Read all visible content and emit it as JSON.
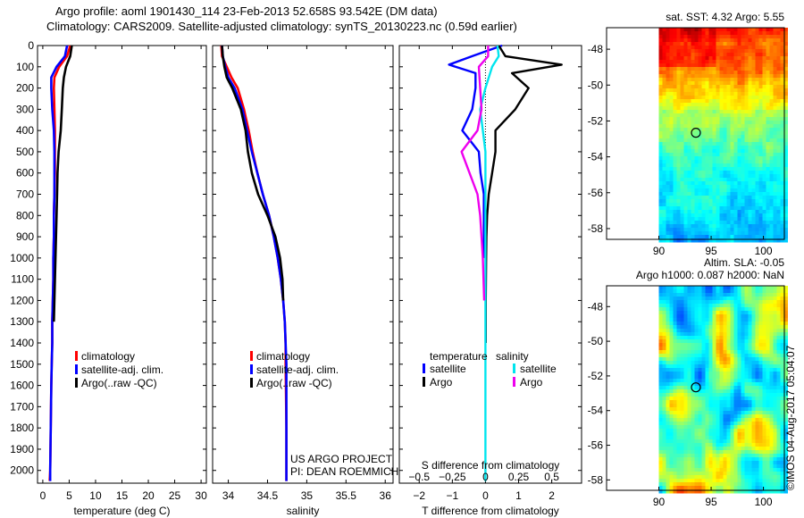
{
  "header": {
    "line1": "Argo profile: aoml 1901430_114 23-Feb-2013 52.658S 93.542E (DM data)",
    "line2": "Climatology: CARS2009. Satellite-adjusted climatology: synTS_20130223.nc (0.59d earlier)"
  },
  "colors": {
    "climatology": "#ff0000",
    "satellite": "#0000ff",
    "argo": "#000000",
    "sat_salinity": "#00e5ee",
    "argo_salinity": "#ee00ee"
  },
  "chart_data": [
    {
      "id": "temperature",
      "type": "line",
      "xlabel": "temperature (deg C)",
      "ylabel": "",
      "xlim": [
        -1,
        31
      ],
      "ylim": [
        2060,
        0
      ],
      "y_reversed": true,
      "xticks": [
        0,
        5,
        10,
        15,
        20,
        25,
        30
      ],
      "yticks": [
        0,
        100,
        200,
        300,
        400,
        500,
        600,
        700,
        800,
        900,
        1000,
        1100,
        1200,
        1300,
        1400,
        1500,
        1600,
        1700,
        1800,
        1900,
        2000
      ],
      "legend": [
        "climatology",
        "satellite-adj. clim.",
        "Argo(..raw -QC)"
      ],
      "series": [
        {
          "name": "climatology",
          "color": "#ff0000",
          "x": [
            5.2,
            4.6,
            3.1,
            2.2,
            2.1,
            2.2,
            2.3,
            2.3,
            2.3,
            2.2,
            2.1,
            2.1,
            2.0,
            2.0,
            1.9,
            1.8,
            1.8,
            1.7,
            1.6,
            1.5,
            1.4,
            1.3
          ],
          "y": [
            0,
            50,
            100,
            150,
            200,
            300,
            400,
            500,
            600,
            700,
            800,
            900,
            1000,
            1100,
            1200,
            1300,
            1400,
            1500,
            1600,
            1800,
            2000,
            2050
          ]
        },
        {
          "name": "satellite-adj. clim.",
          "color": "#0000ff",
          "x": [
            4.6,
            4.2,
            2.6,
            1.6,
            1.6,
            1.8,
            2.1,
            2.2,
            2.2,
            2.2,
            2.1,
            2.1,
            2.0,
            2.0,
            1.9,
            1.8,
            1.8,
            1.7,
            1.6,
            1.5,
            1.4,
            1.4
          ],
          "y": [
            0,
            50,
            100,
            150,
            200,
            300,
            400,
            500,
            600,
            700,
            800,
            900,
            1000,
            1100,
            1200,
            1300,
            1400,
            1500,
            1600,
            1800,
            2000,
            2050
          ]
        },
        {
          "name": "Argo(..raw -QC)",
          "color": "#000000",
          "x": [
            5.5,
            5.2,
            4.4,
            4.0,
            3.8,
            3.6,
            3.4,
            3.0,
            2.8,
            2.7,
            2.6,
            2.5,
            2.4,
            2.3,
            2.2,
            2.1
          ],
          "y": [
            0,
            50,
            100,
            150,
            200,
            300,
            400,
            500,
            600,
            700,
            800,
            900,
            1000,
            1100,
            1200,
            1300
          ]
        }
      ]
    },
    {
      "id": "salinity",
      "type": "line",
      "xlabel": "salinity",
      "ylabel": "",
      "xlim": [
        33.8,
        36.1
      ],
      "ylim": [
        2060,
        0
      ],
      "y_reversed": true,
      "xticks": [
        34,
        34.5,
        35,
        35.5,
        36
      ],
      "xticklabels": [
        "34",
        "34.5",
        "35",
        "35.5",
        "36"
      ],
      "legend": [
        "climatology",
        "satellite-adj. clim.",
        "Argo(..raw -QC)"
      ],
      "note_lines": [
        "US ARGO PROJECT",
        "PI: DEAN ROEMMICH"
      ],
      "series": [
        {
          "name": "climatology",
          "color": "#ff0000",
          "x": [
            33.91,
            33.92,
            33.98,
            34.04,
            34.12,
            34.2,
            34.26,
            34.31,
            34.37,
            34.44,
            34.52,
            34.58,
            34.63,
            34.67,
            34.7,
            34.72,
            34.73,
            34.73,
            34.74,
            34.74
          ],
          "y": [
            0,
            50,
            100,
            150,
            200,
            300,
            400,
            500,
            600,
            700,
            800,
            900,
            1000,
            1100,
            1200,
            1300,
            1400,
            1500,
            1800,
            2050
          ]
        },
        {
          "name": "satellite-adj. clim.",
          "color": "#0000ff",
          "x": [
            33.92,
            33.93,
            33.96,
            34.0,
            34.08,
            34.18,
            34.24,
            34.3,
            34.37,
            34.44,
            34.52,
            34.58,
            34.63,
            34.67,
            34.7,
            34.72,
            34.73,
            34.74,
            34.74,
            34.74
          ],
          "y": [
            0,
            50,
            100,
            150,
            200,
            300,
            400,
            500,
            600,
            700,
            800,
            900,
            1000,
            1100,
            1200,
            1300,
            1400,
            1500,
            1800,
            2050
          ]
        },
        {
          "name": "Argo(..raw -QC)",
          "color": "#000000",
          "x": [
            33.92,
            33.93,
            33.95,
            33.98,
            34.05,
            34.16,
            34.22,
            34.25,
            34.3,
            34.38,
            34.5,
            34.6,
            34.66,
            34.69,
            34.7
          ],
          "y": [
            0,
            50,
            100,
            150,
            200,
            300,
            400,
            500,
            600,
            700,
            800,
            900,
            1000,
            1100,
            1200
          ]
        }
      ]
    },
    {
      "id": "difference",
      "type": "line",
      "xlabel": "T difference from climatology",
      "xlabel_top": "S difference from climatology",
      "xlim": [
        -2.6,
        2.9
      ],
      "ylim": [
        2060,
        0
      ],
      "y_reversed": true,
      "xticks": [
        -2,
        -1,
        0,
        1,
        2
      ],
      "xticklabels": [
        "−2",
        "−1",
        "0",
        "1",
        "2"
      ],
      "s_ticks": [
        -0.5,
        -0.25,
        0,
        0.25,
        0.5
      ],
      "s_ticklabels": [
        "−0.5",
        "−0.25",
        "0",
        "0.25",
        "0.5"
      ],
      "legend_titles": [
        "temperature",
        "salinity"
      ],
      "legend": [
        "satellite",
        "Argo",
        "satellite",
        "Argo"
      ],
      "series": [
        {
          "name": "satellite",
          "quantity": "temperature",
          "color": "#0000ff",
          "x": [
            0.5,
            -0.4,
            -1.1,
            -0.3,
            -0.3,
            -0.4,
            -0.7,
            -0.2,
            -0.15,
            -0.05,
            -0.05,
            -0.05,
            -0.05
          ],
          "y": [
            0,
            50,
            90,
            130,
            200,
            300,
            400,
            500,
            600,
            700,
            800,
            900,
            1000
          ]
        },
        {
          "name": "Argo",
          "quantity": "temperature",
          "color": "#000000",
          "x": [
            0.4,
            0.6,
            2.3,
            0.8,
            1.3,
            0.9,
            0.3,
            0.3,
            0.2,
            0.1,
            0.05,
            0.03,
            0.02,
            0.01,
            0.01
          ],
          "y": [
            0,
            50,
            90,
            130,
            200,
            300,
            400,
            500,
            600,
            700,
            800,
            900,
            1000,
            1200,
            1400
          ]
        },
        {
          "name": "satellite",
          "quantity": "salinity",
          "color": "#00e5ee",
          "x": [
            0.09,
            0.1,
            0.05,
            0.0,
            -0.04,
            -0.02,
            0.0,
            0.0,
            0.0,
            0.0,
            0.0,
            0.0,
            0.0,
            0.0,
            0.0
          ],
          "y": [
            0,
            50,
            100,
            200,
            300,
            400,
            500,
            600,
            700,
            800,
            1000,
            1200,
            1500,
            1800,
            2050
          ]
        },
        {
          "name": "Argo",
          "quantity": "salinity",
          "color": "#ee00ee",
          "x": [
            0.02,
            0.02,
            -0.05,
            -0.04,
            -0.03,
            -0.06,
            -0.18,
            -0.12,
            -0.06,
            -0.04,
            -0.03,
            -0.02,
            -0.01
          ],
          "y": [
            0,
            50,
            100,
            200,
            300,
            400,
            500,
            600,
            700,
            800,
            900,
            1000,
            1200
          ]
        }
      ]
    },
    {
      "id": "sst_map",
      "type": "heatmap",
      "title": "sat. SST: 4.32  Argo: 5.55",
      "xlim": [
        85,
        102
      ],
      "ylim": [
        -58.6,
        -46.8
      ],
      "xticks": [
        90,
        95,
        100
      ],
      "yticks": [
        -48,
        -50,
        -52,
        -54,
        -56,
        -58
      ],
      "data_extent_x": [
        90,
        102
      ],
      "marker": {
        "lon": 93.542,
        "lat": -52.658
      }
    },
    {
      "id": "sla_map",
      "type": "heatmap",
      "title": "Altim. SLA: -0.05",
      "title2": "Argo h1000: 0.087 h2000: NaN",
      "xlim": [
        85,
        102
      ],
      "ylim": [
        -58.6,
        -46.8
      ],
      "xticks": [
        90,
        95,
        100
      ],
      "yticks": [
        -48,
        -50,
        -52,
        -54,
        -56,
        -58
      ],
      "data_extent_x": [
        90,
        102
      ],
      "marker": {
        "lon": 93.542,
        "lat": -52.658
      }
    }
  ],
  "footer": {
    "credit": "©IMOS 04-Aug-2017 05:04:07"
  }
}
